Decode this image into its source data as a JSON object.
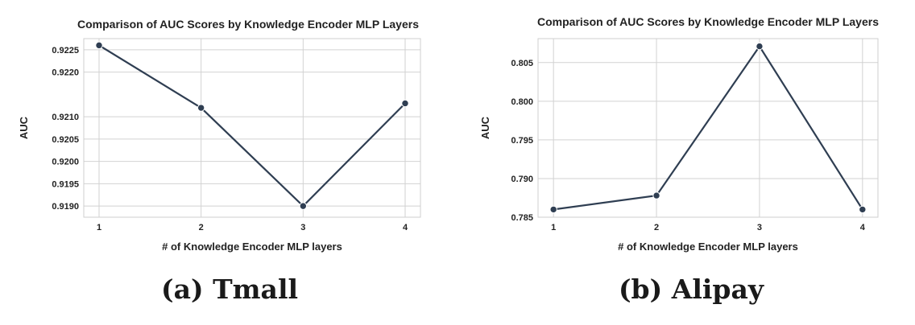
{
  "chart_data": [
    {
      "type": "line",
      "title": "Comparison of AUC Scores by Knowledge Encoder MLP Layers",
      "xlabel": "# of Knowledge Encoder MLP layers",
      "ylabel": "AUC",
      "x": [
        1,
        2,
        3,
        4
      ],
      "y": [
        0.9226,
        0.9212,
        0.919,
        0.9213
      ],
      "xticks": [
        "1",
        "2",
        "3",
        "4"
      ],
      "yticks": [
        "0.9190",
        "0.9195",
        "0.9200",
        "0.9205",
        "0.9210",
        "0.9220",
        "0.9225"
      ],
      "ytick_values": [
        0.919,
        0.9195,
        0.92,
        0.9205,
        0.921,
        0.922,
        0.9225
      ],
      "ylim": [
        0.91875,
        0.92275
      ],
      "xlim": [
        0.85,
        4.15
      ],
      "grid": true,
      "color": "#2f3e52"
    },
    {
      "type": "line",
      "title": "Comparison of AUC Scores by Knowledge Encoder MLP Layers",
      "xlabel": "# of Knowledge Encoder MLP layers",
      "ylabel": "AUC",
      "x": [
        1,
        2,
        3,
        4
      ],
      "y": [
        0.786,
        0.7878,
        0.8071,
        0.786
      ],
      "xticks": [
        "1",
        "2",
        "3",
        "4"
      ],
      "yticks": [
        "0.785",
        "0.790",
        "0.795",
        "0.800",
        "0.805"
      ],
      "ytick_values": [
        0.785,
        0.79,
        0.795,
        0.8,
        0.805
      ],
      "ylim": [
        0.785,
        0.8081
      ],
      "xlim": [
        0.85,
        4.15
      ],
      "grid": true,
      "color": "#2f3e52"
    }
  ],
  "captions": [
    "(a) Tmall",
    "(b) Alipay"
  ]
}
